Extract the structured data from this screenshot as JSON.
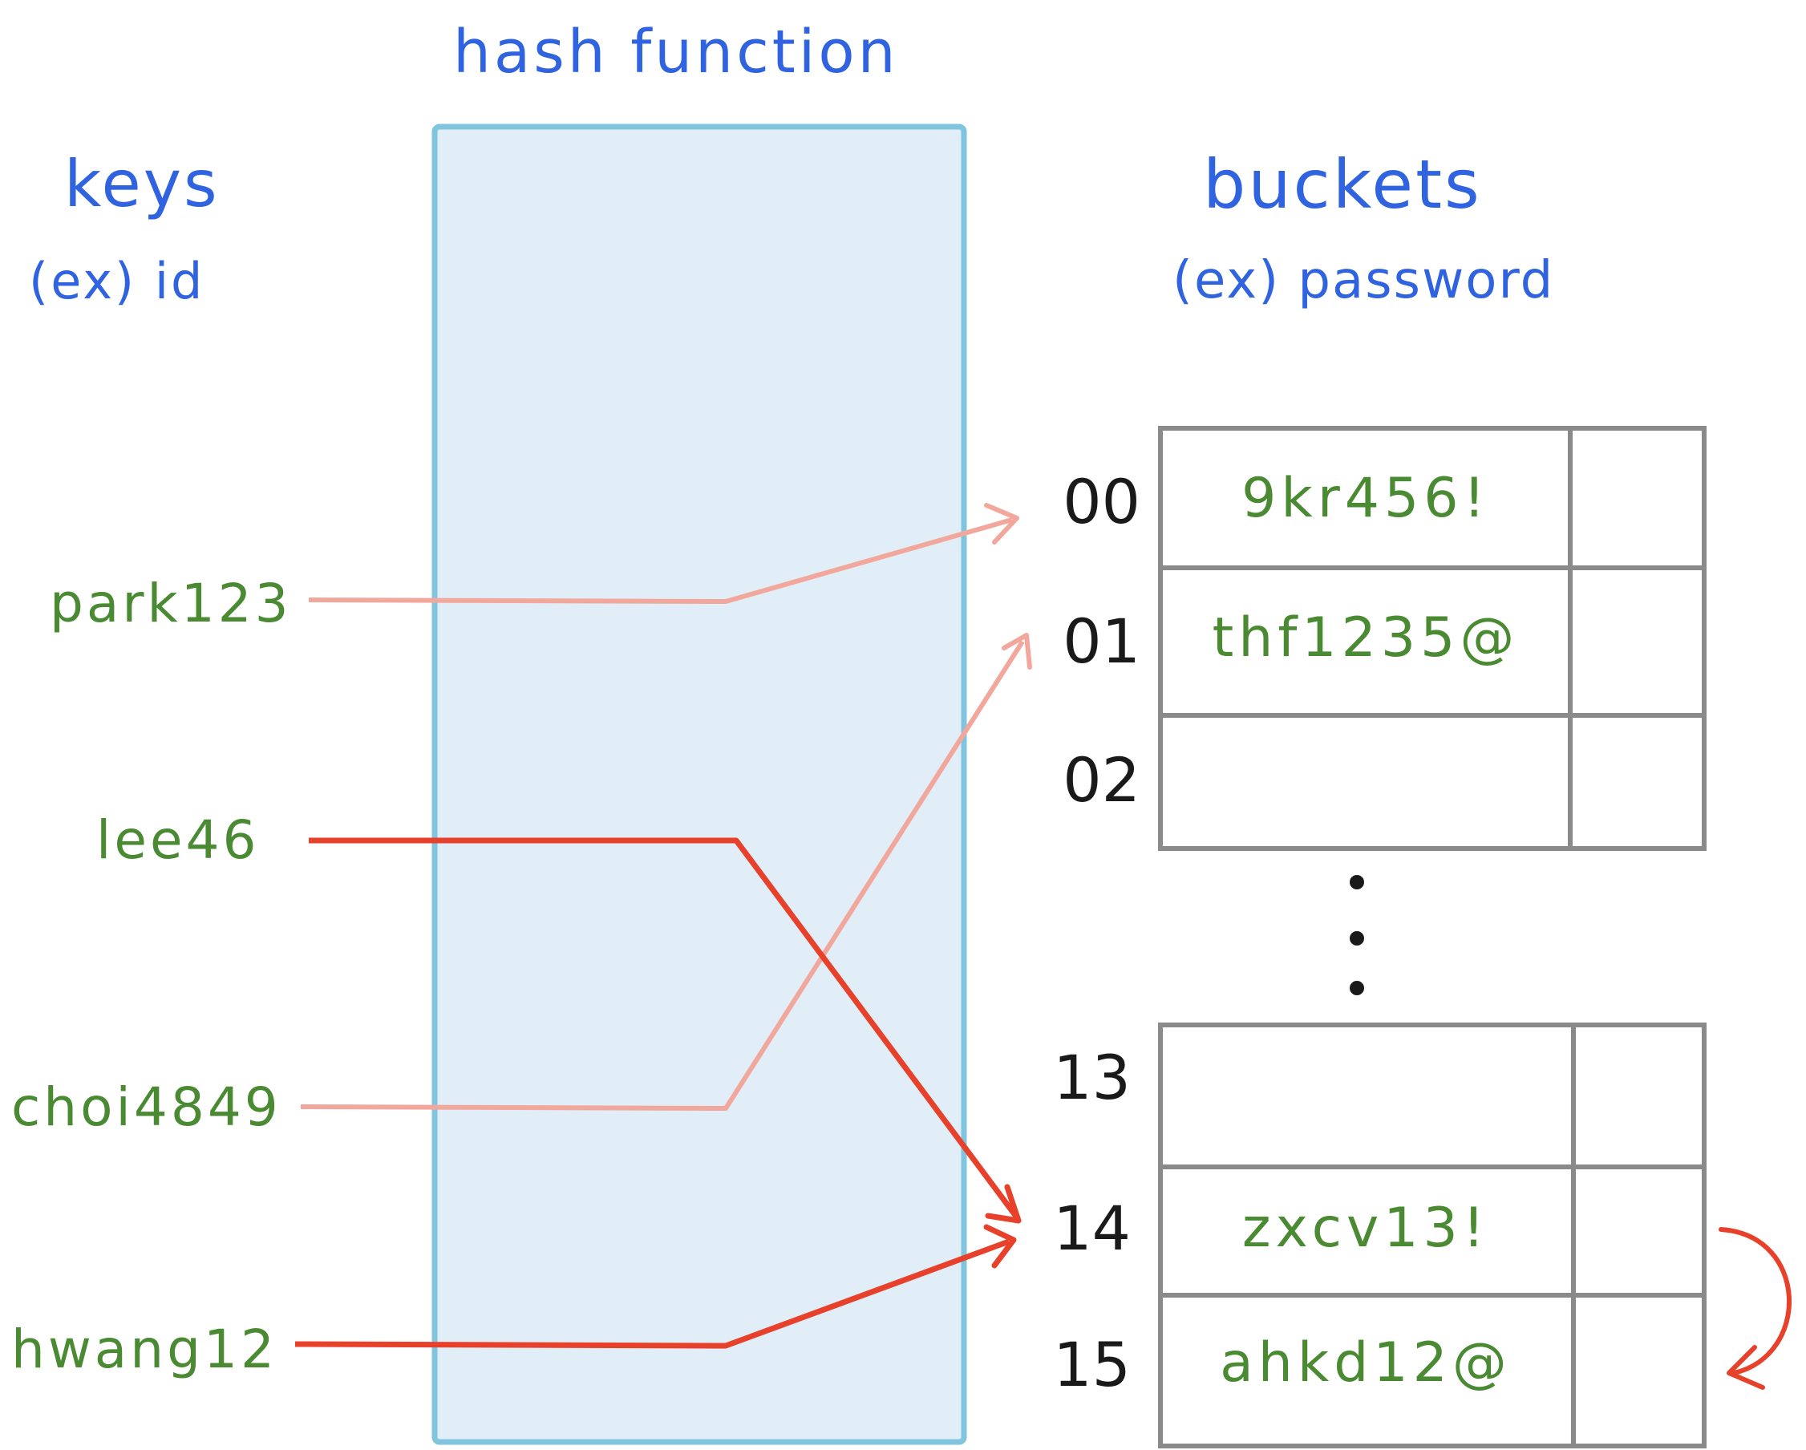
{
  "titles": {
    "hash_function": "hash function",
    "keys": "keys",
    "keys_example": "(ex) id",
    "buckets": "buckets",
    "buckets_example": "(ex) password"
  },
  "keys": [
    "park123",
    "lee46",
    "choi4849",
    "hwang12"
  ],
  "buckets_top": [
    {
      "index": "00",
      "value": "9kr456!"
    },
    {
      "index": "01",
      "value": "thf1235@"
    },
    {
      "index": "02",
      "value": ""
    }
  ],
  "buckets_bottom": [
    {
      "index": "13",
      "value": ""
    },
    {
      "index": "14",
      "value": "zxcv13!"
    },
    {
      "index": "15",
      "value": "ahkd12@"
    }
  ],
  "mappings": [
    {
      "key": "park123",
      "bucket": "00",
      "style": "faint"
    },
    {
      "key": "lee46",
      "bucket": "14",
      "style": "strong"
    },
    {
      "key": "choi4849",
      "bucket": "01",
      "style": "faint"
    },
    {
      "key": "hwang12",
      "bucket": "14",
      "style": "strong"
    }
  ],
  "collision_redirect": {
    "from": "14",
    "to": "15"
  },
  "colors": {
    "title": "#2f63e0",
    "key_text": "#4a8a32",
    "hash_box_fill": "#e1eef7",
    "hash_box_stroke": "#80c4dd",
    "arrow_faint": "#f2a79c",
    "arrow_strong": "#e8412b",
    "grid": "#8a8a8a"
  }
}
